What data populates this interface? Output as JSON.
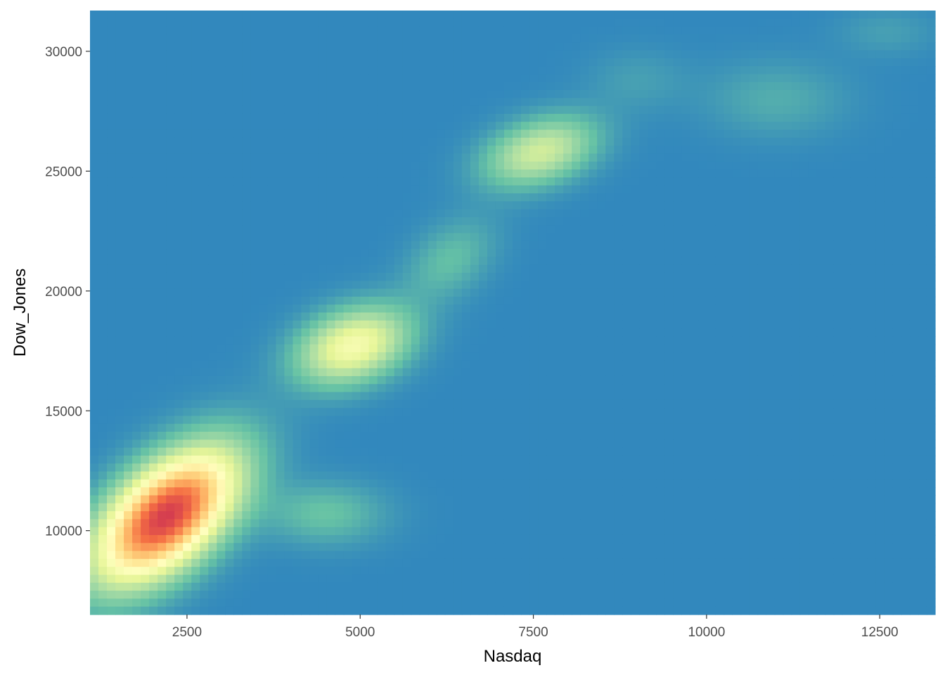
{
  "chart_data": {
    "type": "heatmap",
    "kind": "2d-density",
    "xlabel": "Nasdaq",
    "ylabel": "Dow_Jones",
    "xlim": [
      1100,
      13300
    ],
    "ylim": [
      6500,
      31700
    ],
    "x_ticks": [
      2500,
      5000,
      7500,
      10000,
      12500
    ],
    "y_ticks": [
      10000,
      15000,
      20000,
      25000,
      30000
    ],
    "x_tick_labels": [
      "2500",
      "5000",
      "7500",
      "10000",
      "12500"
    ],
    "y_tick_labels": [
      "10000",
      "15000",
      "20000",
      "25000",
      "30000"
    ],
    "grid": false,
    "legend": "none",
    "palette": [
      "#3288bd",
      "#66c2a5",
      "#abdda4",
      "#e6f598",
      "#ffffbf",
      "#fee08b",
      "#fdae61",
      "#f46d43",
      "#d53e4f"
    ],
    "density_peaks": [
      {
        "x": 2200,
        "y": 10600,
        "relative_density": 1.0
      },
      {
        "x": 4900,
        "y": 17700,
        "relative_density": 0.45
      },
      {
        "x": 7600,
        "y": 25800,
        "relative_density": 0.33
      },
      {
        "x": 6300,
        "y": 21300,
        "relative_density": 0.12
      },
      {
        "x": 4500,
        "y": 10700,
        "relative_density": 0.13
      },
      {
        "x": 9000,
        "y": 28800,
        "relative_density": 0.05
      },
      {
        "x": 11000,
        "y": 28000,
        "relative_density": 0.08
      },
      {
        "x": 12600,
        "y": 30800,
        "relative_density": 0.05
      }
    ]
  }
}
